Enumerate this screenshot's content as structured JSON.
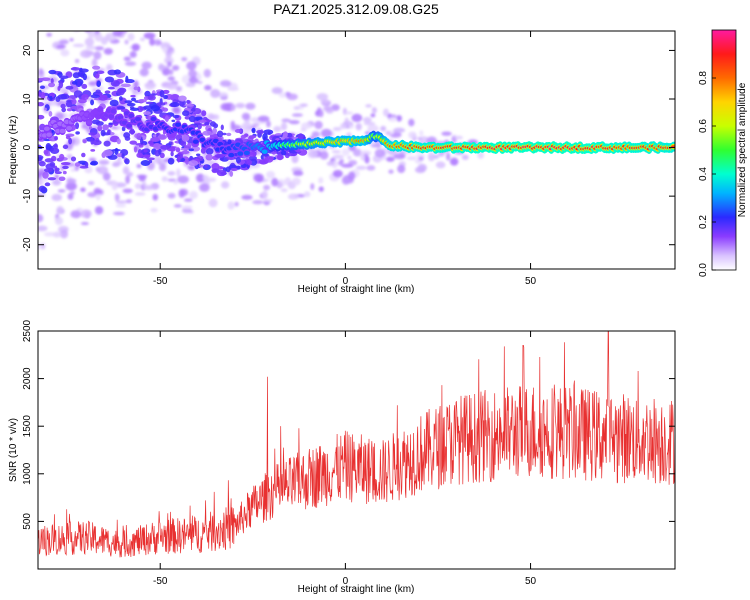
{
  "figure": {
    "title": "PAZ1.2025.312.09.08.G25"
  },
  "chart_data": [
    {
      "type": "heatmap",
      "xlabel": "Height of straight line (km)",
      "ylabel": "Frequency (Hz)",
      "xlim": [
        -83,
        89
      ],
      "ylim": [
        -25,
        24
      ],
      "xticks": [
        -50,
        0,
        50
      ],
      "yticks": [
        -20,
        -10,
        0,
        10,
        20
      ],
      "colorbar": {
        "label": "Normalized spectral amplitude",
        "ticks": [
          0.0,
          0.2,
          0.4,
          0.6,
          0.8
        ],
        "tick_labels": [
          "0.0",
          "0.2",
          "0.4",
          "0.6",
          "0.8"
        ],
        "range": [
          0,
          1
        ],
        "colormap": "rainbow"
      },
      "ridge": {
        "description_points_x": [
          -83,
          -75,
          -65,
          -55,
          -45,
          -38,
          -32,
          -25,
          -15,
          -5,
          5,
          8,
          12,
          20,
          40,
          60,
          89
        ],
        "frequency_y": [
          3,
          5,
          7,
          5,
          4,
          1.5,
          -1,
          0,
          0.5,
          1,
          1.5,
          2.5,
          0.5,
          0,
          0,
          0,
          0
        ],
        "amplitude": [
          0.15,
          0.15,
          0.2,
          0.25,
          0.3,
          0.3,
          0.3,
          0.35,
          0.55,
          0.7,
          0.75,
          0.55,
          0.8,
          0.85,
          0.9,
          0.9,
          0.85
        ]
      }
    },
    {
      "type": "line",
      "xlabel": "Height of straight line (km)",
      "ylabel": "SNR (10 * v/v)",
      "xlim": [
        -83,
        89
      ],
      "ylim": [
        0,
        2500
      ],
      "xticks": [
        -50,
        0,
        50
      ],
      "yticks": [
        500,
        1000,
        1500,
        2000,
        2500
      ],
      "line_color": "#e83030",
      "trend": {
        "x": [
          -83,
          -70,
          -60,
          -50,
          -40,
          -30,
          -26,
          -20,
          -10,
          0,
          10,
          20,
          30,
          40,
          50,
          60,
          70,
          80,
          89
        ],
        "y": [
          300,
          330,
          260,
          340,
          360,
          440,
          620,
          800,
          950,
          1080,
          1010,
          1210,
          1360,
          1410,
          1460,
          1440,
          1390,
          1370,
          1340
        ]
      },
      "spikes": {
        "x": [
          -21,
          14,
          48,
          71,
          79
        ],
        "y": [
          2020,
          1720,
          2350,
          2500,
          2080
        ]
      }
    }
  ]
}
